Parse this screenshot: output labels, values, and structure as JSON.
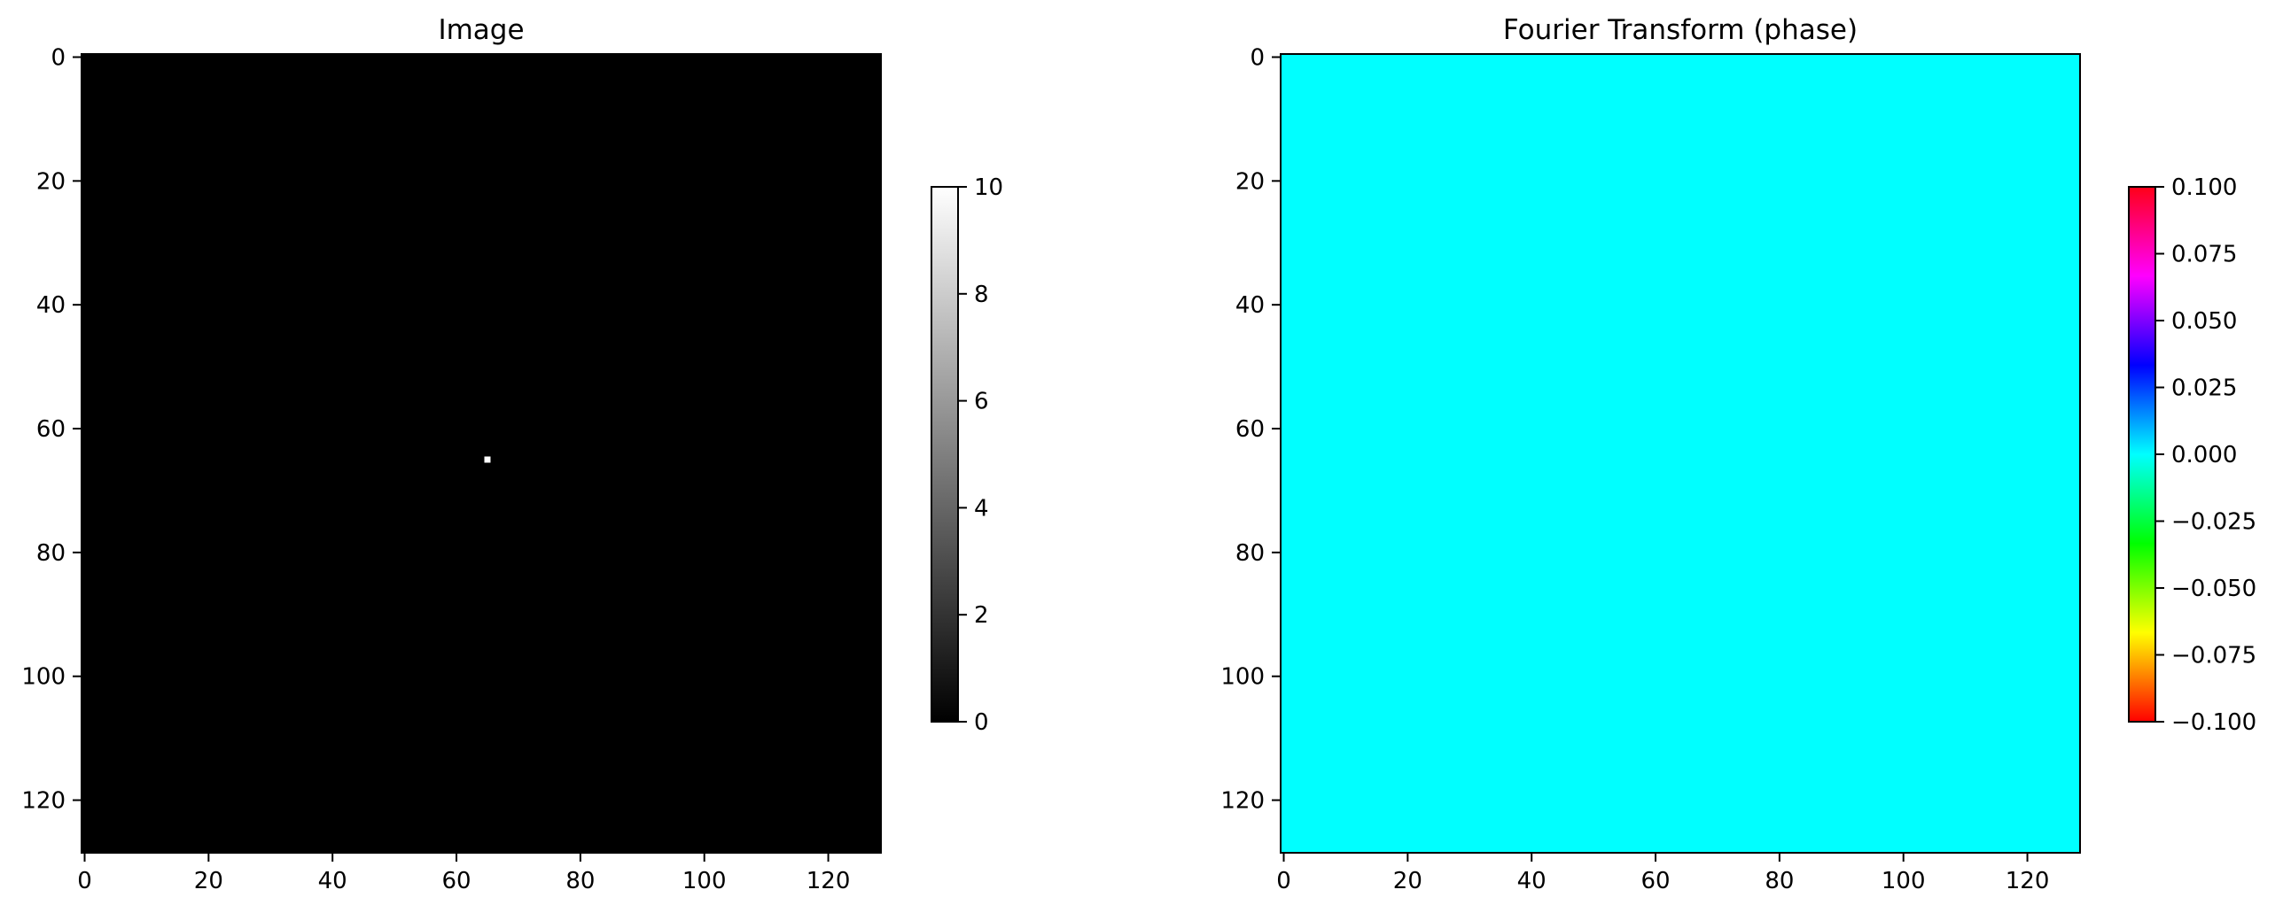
{
  "chart_data": [
    {
      "type": "heatmap",
      "title": "Image",
      "xlabel": "",
      "ylabel": "",
      "xlim": [
        -0.5,
        128.5
      ],
      "ylim": [
        128.5,
        -0.5
      ],
      "y_inverted": true,
      "grid": false,
      "x_ticks": [
        0,
        20,
        40,
        60,
        80,
        100,
        120
      ],
      "y_ticks": [
        0,
        20,
        40,
        60,
        80,
        100,
        120
      ],
      "colormap": "gray",
      "background_value": 0,
      "nonzero_pixels": [
        {
          "x": 65,
          "y": 65,
          "value": 10
        }
      ],
      "colorbar": {
        "min": 0,
        "max": 10,
        "ticks": [
          "0",
          "2",
          "4",
          "6",
          "8",
          "10"
        ],
        "stops": [
          "#000000",
          "#ffffff"
        ]
      }
    },
    {
      "type": "heatmap",
      "title": "Fourier Transform (phase)",
      "xlabel": "",
      "ylabel": "",
      "xlim": [
        -0.5,
        128.5
      ],
      "ylim": [
        128.5,
        -0.5
      ],
      "y_inverted": true,
      "grid": false,
      "x_ticks": [
        0,
        20,
        40,
        60,
        80,
        100,
        120
      ],
      "y_ticks": [
        0,
        20,
        40,
        60,
        80,
        100,
        120
      ],
      "colormap": "hsv",
      "background_value": 0.0,
      "nonzero_pixels": [],
      "colorbar": {
        "min": -0.1,
        "max": 0.1,
        "ticks": [
          "−0.100",
          "−0.075",
          "−0.050",
          "−0.025",
          "0.000",
          "0.025",
          "0.050",
          "0.075",
          "0.100"
        ],
        "stops": [
          "#ff0000",
          "#ffff00",
          "#00ff00",
          "#00ffff",
          "#0000ff",
          "#ff00ff",
          "#ff0018"
        ]
      }
    }
  ]
}
